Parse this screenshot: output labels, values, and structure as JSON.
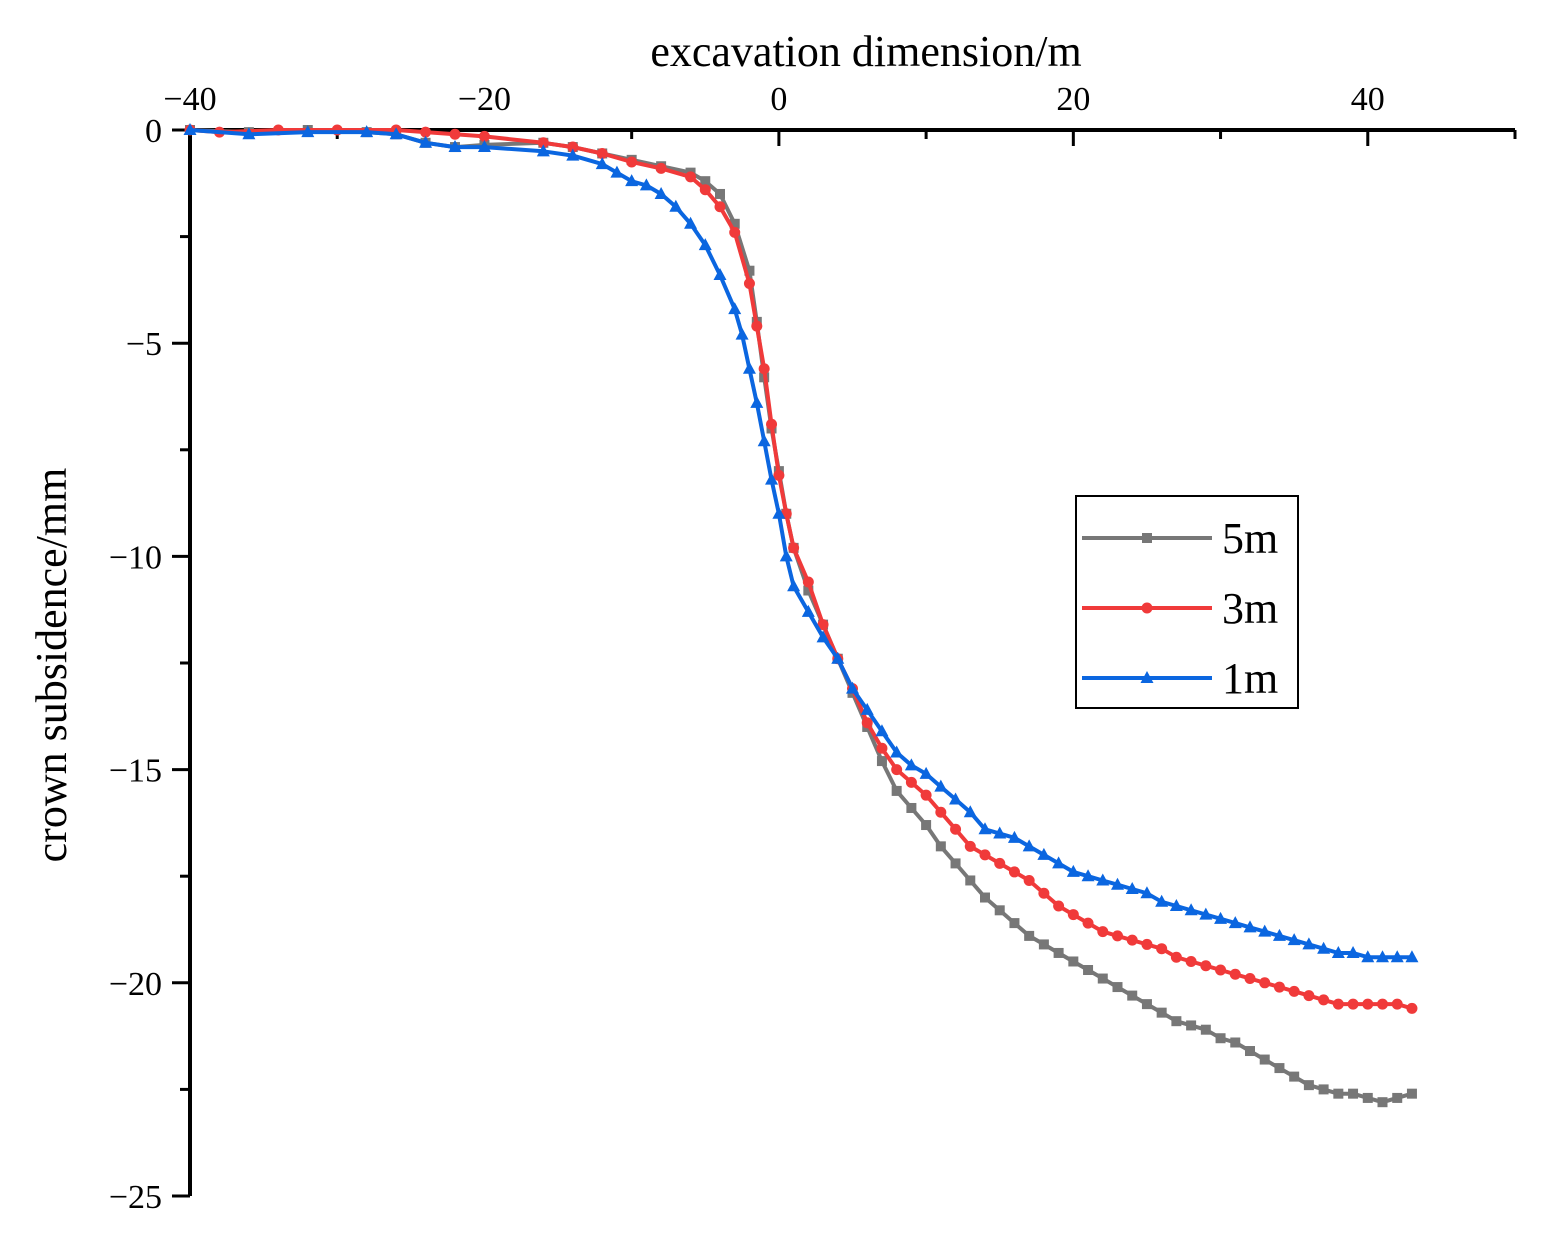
{
  "chart_data": {
    "type": "line",
    "xlabel": "excavation dimension/m",
    "ylabel": "crown subsidence/mm",
    "x_axis_position": "top",
    "xlim": [
      -40,
      50
    ],
    "ylim": [
      -25,
      0
    ],
    "x_ticks": [
      -40,
      -20,
      0,
      20,
      40
    ],
    "x_tick_labels": [
      "−40",
      "−20",
      "0",
      "20",
      "40"
    ],
    "y_ticks": [
      0,
      -5,
      -10,
      -15,
      -20,
      -25
    ],
    "y_tick_labels": [
      "0",
      "−5",
      "−10",
      "−15",
      "−20",
      "−25"
    ],
    "grid": false,
    "legend_position": "right",
    "series": [
      {
        "name": "5m",
        "color": "#777777",
        "marker": "square",
        "points": [
          [
            -40,
            0
          ],
          [
            -36,
            -0.05
          ],
          [
            -32,
            0
          ],
          [
            -28,
            -0.05
          ],
          [
            -26,
            -0.1
          ],
          [
            -24,
            -0.3
          ],
          [
            -22,
            -0.4
          ],
          [
            -20,
            -0.35
          ],
          [
            -16,
            -0.3
          ],
          [
            -14,
            -0.4
          ],
          [
            -12,
            -0.55
          ],
          [
            -10,
            -0.7
          ],
          [
            -8,
            -0.85
          ],
          [
            -6,
            -1.0
          ],
          [
            -5,
            -1.2
          ],
          [
            -4,
            -1.5
          ],
          [
            -3,
            -2.2
          ],
          [
            -2,
            -3.3
          ],
          [
            -1.5,
            -4.5
          ],
          [
            -1,
            -5.8
          ],
          [
            -0.5,
            -7.0
          ],
          [
            0,
            -8.0
          ],
          [
            0.5,
            -9.0
          ],
          [
            1,
            -9.8
          ],
          [
            2,
            -10.8
          ],
          [
            3,
            -11.6
          ],
          [
            4,
            -12.4
          ],
          [
            5,
            -13.2
          ],
          [
            6,
            -14.0
          ],
          [
            7,
            -14.8
          ],
          [
            8,
            -15.5
          ],
          [
            9,
            -15.9
          ],
          [
            10,
            -16.3
          ],
          [
            11,
            -16.8
          ],
          [
            12,
            -17.2
          ],
          [
            13,
            -17.6
          ],
          [
            14,
            -18.0
          ],
          [
            15,
            -18.3
          ],
          [
            16,
            -18.6
          ],
          [
            17,
            -18.9
          ],
          [
            18,
            -19.1
          ],
          [
            19,
            -19.3
          ],
          [
            20,
            -19.5
          ],
          [
            21,
            -19.7
          ],
          [
            22,
            -19.9
          ],
          [
            23,
            -20.1
          ],
          [
            24,
            -20.3
          ],
          [
            25,
            -20.5
          ],
          [
            26,
            -20.7
          ],
          [
            27,
            -20.9
          ],
          [
            28,
            -21.0
          ],
          [
            29,
            -21.1
          ],
          [
            30,
            -21.3
          ],
          [
            31,
            -21.4
          ],
          [
            32,
            -21.6
          ],
          [
            33,
            -21.8
          ],
          [
            34,
            -22.0
          ],
          [
            35,
            -22.2
          ],
          [
            36,
            -22.4
          ],
          [
            37,
            -22.5
          ],
          [
            38,
            -22.6
          ],
          [
            39,
            -22.6
          ],
          [
            40,
            -22.7
          ],
          [
            41,
            -22.8
          ],
          [
            42,
            -22.7
          ],
          [
            43,
            -22.6
          ]
        ]
      },
      {
        "name": "3m",
        "color": "#f03a3a",
        "marker": "circle",
        "points": [
          [
            -40,
            0
          ],
          [
            -38,
            -0.05
          ],
          [
            -34,
            0
          ],
          [
            -30,
            0
          ],
          [
            -26,
            0
          ],
          [
            -24,
            -0.05
          ],
          [
            -22,
            -0.1
          ],
          [
            -20,
            -0.15
          ],
          [
            -16,
            -0.3
          ],
          [
            -14,
            -0.4
          ],
          [
            -12,
            -0.55
          ],
          [
            -10,
            -0.75
          ],
          [
            -8,
            -0.9
          ],
          [
            -6,
            -1.1
          ],
          [
            -5,
            -1.4
          ],
          [
            -4,
            -1.8
          ],
          [
            -3,
            -2.4
          ],
          [
            -2,
            -3.6
          ],
          [
            -1.5,
            -4.6
          ],
          [
            -1,
            -5.6
          ],
          [
            -0.5,
            -6.9
          ],
          [
            0,
            -8.1
          ],
          [
            0.5,
            -9.0
          ],
          [
            1,
            -9.8
          ],
          [
            2,
            -10.6
          ],
          [
            3,
            -11.6
          ],
          [
            4,
            -12.4
          ],
          [
            5,
            -13.1
          ],
          [
            6,
            -13.9
          ],
          [
            7,
            -14.5
          ],
          [
            8,
            -15.0
          ],
          [
            9,
            -15.3
          ],
          [
            10,
            -15.6
          ],
          [
            11,
            -16.0
          ],
          [
            12,
            -16.4
          ],
          [
            13,
            -16.8
          ],
          [
            14,
            -17.0
          ],
          [
            15,
            -17.2
          ],
          [
            16,
            -17.4
          ],
          [
            17,
            -17.6
          ],
          [
            18,
            -17.9
          ],
          [
            19,
            -18.2
          ],
          [
            20,
            -18.4
          ],
          [
            21,
            -18.6
          ],
          [
            22,
            -18.8
          ],
          [
            23,
            -18.9
          ],
          [
            24,
            -19.0
          ],
          [
            25,
            -19.1
          ],
          [
            26,
            -19.2
          ],
          [
            27,
            -19.4
          ],
          [
            28,
            -19.5
          ],
          [
            29,
            -19.6
          ],
          [
            30,
            -19.7
          ],
          [
            31,
            -19.8
          ],
          [
            32,
            -19.9
          ],
          [
            33,
            -20.0
          ],
          [
            34,
            -20.1
          ],
          [
            35,
            -20.2
          ],
          [
            36,
            -20.3
          ],
          [
            37,
            -20.4
          ],
          [
            38,
            -20.5
          ],
          [
            39,
            -20.5
          ],
          [
            40,
            -20.5
          ],
          [
            41,
            -20.5
          ],
          [
            42,
            -20.5
          ],
          [
            43,
            -20.6
          ]
        ]
      },
      {
        "name": "1m",
        "color": "#0b66e0",
        "marker": "triangle",
        "points": [
          [
            -40,
            0
          ],
          [
            -36,
            -0.1
          ],
          [
            -32,
            -0.05
          ],
          [
            -28,
            -0.05
          ],
          [
            -26,
            -0.1
          ],
          [
            -24,
            -0.3
          ],
          [
            -22,
            -0.4
          ],
          [
            -20,
            -0.4
          ],
          [
            -16,
            -0.5
          ],
          [
            -14,
            -0.6
          ],
          [
            -12,
            -0.8
          ],
          [
            -11,
            -1.0
          ],
          [
            -10,
            -1.2
          ],
          [
            -9,
            -1.3
          ],
          [
            -8,
            -1.5
          ],
          [
            -7,
            -1.8
          ],
          [
            -6,
            -2.2
          ],
          [
            -5,
            -2.7
          ],
          [
            -4,
            -3.4
          ],
          [
            -3,
            -4.2
          ],
          [
            -2.5,
            -4.8
          ],
          [
            -2,
            -5.6
          ],
          [
            -1.5,
            -6.4
          ],
          [
            -1,
            -7.3
          ],
          [
            -0.5,
            -8.2
          ],
          [
            0,
            -9.0
          ],
          [
            0.5,
            -10.0
          ],
          [
            1,
            -10.7
          ],
          [
            2,
            -11.3
          ],
          [
            3,
            -11.9
          ],
          [
            4,
            -12.4
          ],
          [
            5,
            -13.1
          ],
          [
            6,
            -13.6
          ],
          [
            7,
            -14.1
          ],
          [
            8,
            -14.6
          ],
          [
            9,
            -14.9
          ],
          [
            10,
            -15.1
          ],
          [
            11,
            -15.4
          ],
          [
            12,
            -15.7
          ],
          [
            13,
            -16.0
          ],
          [
            14,
            -16.4
          ],
          [
            15,
            -16.5
          ],
          [
            16,
            -16.6
          ],
          [
            17,
            -16.8
          ],
          [
            18,
            -17.0
          ],
          [
            19,
            -17.2
          ],
          [
            20,
            -17.4
          ],
          [
            21,
            -17.5
          ],
          [
            22,
            -17.6
          ],
          [
            23,
            -17.7
          ],
          [
            24,
            -17.8
          ],
          [
            25,
            -17.9
          ],
          [
            26,
            -18.1
          ],
          [
            27,
            -18.2
          ],
          [
            28,
            -18.3
          ],
          [
            29,
            -18.4
          ],
          [
            30,
            -18.5
          ],
          [
            31,
            -18.6
          ],
          [
            32,
            -18.7
          ],
          [
            33,
            -18.8
          ],
          [
            34,
            -18.9
          ],
          [
            35,
            -19.0
          ],
          [
            36,
            -19.1
          ],
          [
            37,
            -19.2
          ],
          [
            38,
            -19.3
          ],
          [
            39,
            -19.3
          ],
          [
            40,
            -19.4
          ],
          [
            41,
            -19.4
          ],
          [
            42,
            -19.4
          ],
          [
            43,
            -19.4
          ]
        ]
      }
    ]
  }
}
